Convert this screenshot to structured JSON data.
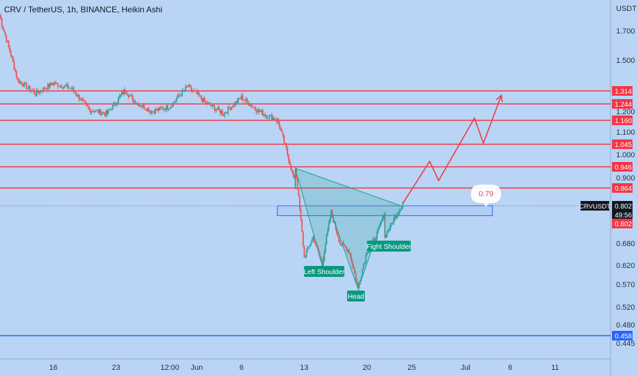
{
  "header": {
    "symbol_title": "CRV / TetherUS, 1h, BINANCE, Heikin Ashi"
  },
  "price_axis": {
    "unit": "USDT",
    "ticks": [
      "1.700",
      "1.500",
      "1.200",
      "1.100",
      "1.000",
      "0.900",
      "0.680",
      "0.620",
      "0.570",
      "0.520",
      "0.480",
      "0.445"
    ]
  },
  "time_axis": {
    "ticks": [
      "16",
      "23",
      "12:00",
      "Jun",
      "6",
      "13",
      "20",
      "25",
      "Jul",
      "6",
      "11"
    ]
  },
  "levels": [
    {
      "value": 1.314,
      "label": "1.314",
      "color": "#f23645"
    },
    {
      "value": 1.244,
      "label": "1.244",
      "color": "#f23645"
    },
    {
      "value": 1.16,
      "label": "1.160",
      "color": "#f23645"
    },
    {
      "value": 1.045,
      "label": "1.045",
      "color": "#f23645"
    },
    {
      "value": 0.946,
      "label": "0.946",
      "color": "#f23645"
    },
    {
      "value": 0.864,
      "label": "0.864",
      "color": "#f23645"
    },
    {
      "value": 0.458,
      "label": "0.458",
      "color": "#2962ff"
    }
  ],
  "current_price": {
    "symbol": "CRVUSDT",
    "price": "0.802",
    "countdown": "49:56",
    "alt_price": "0.802",
    "value": 0.802
  },
  "annotations": {
    "left_shoulder": "Left Shoulder",
    "head": "Head",
    "right_shoulder": "Fight Shoulder",
    "target_bubble": "0.79"
  },
  "colors": {
    "background": "#b9d4f4",
    "up_candle": "#26a69a",
    "down_candle": "#ef5350",
    "resistance": "#f23645",
    "support": "#2962ff",
    "label_bg": "#089981",
    "projection": "#f23645"
  },
  "chart_data": {
    "type": "candlestick",
    "title": "CRV / TetherUS, 1h, BINANCE, Heikin Ashi",
    "ylabel": "USDT",
    "ylim": [
      0.44,
      1.85
    ],
    "candle_style": "Heikin Ashi",
    "price_path": [
      {
        "x": "May 10",
        "price": 1.8
      },
      {
        "x": "May 12",
        "price": 1.38
      },
      {
        "x": "May 14",
        "price": 1.3
      },
      {
        "x": "May 16",
        "price": 1.36
      },
      {
        "x": "May 18",
        "price": 1.33
      },
      {
        "x": "May 20",
        "price": 1.21
      },
      {
        "x": "May 22",
        "price": 1.19
      },
      {
        "x": "May 24",
        "price": 1.32
      },
      {
        "x": "May 25",
        "price": 1.26
      },
      {
        "x": "May 27",
        "price": 1.2
      },
      {
        "x": "May 29",
        "price": 1.23
      },
      {
        "x": "May 31",
        "price": 1.34
      },
      {
        "x": "Jun 2",
        "price": 1.25
      },
      {
        "x": "Jun 4",
        "price": 1.19
      },
      {
        "x": "Jun 6",
        "price": 1.28
      },
      {
        "x": "Jun 8",
        "price": 1.2
      },
      {
        "x": "Jun 10",
        "price": 1.16
      },
      {
        "x": "Jun 11",
        "price": 1.02
      },
      {
        "x": "Jun 12",
        "price": 0.87
      },
      {
        "x": "Jun 12",
        "price": 0.94
      },
      {
        "x": "Jun 13",
        "price": 0.64
      },
      {
        "x": "Jun 14",
        "price": 0.7
      },
      {
        "x": "Jun 15",
        "price": 0.62
      },
      {
        "x": "Jun 16",
        "price": 0.78
      },
      {
        "x": "Jun 17",
        "price": 0.68
      },
      {
        "x": "Jun 18",
        "price": 0.66
      },
      {
        "x": "Jun 19",
        "price": 0.56
      },
      {
        "x": "Jun 20",
        "price": 0.66
      },
      {
        "x": "Jun 21",
        "price": 0.7
      },
      {
        "x": "Jun 22",
        "price": 0.78
      },
      {
        "x": "Jun 22",
        "price": 0.7
      },
      {
        "x": "Jun 23",
        "price": 0.76
      },
      {
        "x": "Jun 24",
        "price": 0.81
      }
    ],
    "pattern": {
      "name": "inverse head and shoulders",
      "points": [
        {
          "x": "Jun 12",
          "price": 0.94
        },
        {
          "x": "Jun 15",
          "price": 0.62
        },
        {
          "x": "Jun 16",
          "price": 0.78
        },
        {
          "x": "Jun 19",
          "price": 0.56
        },
        {
          "x": "Jun 22",
          "price": 0.78
        },
        {
          "x": "Jun 22",
          "price": 0.7
        },
        {
          "x": "Jun 24",
          "price": 0.8
        }
      ]
    },
    "zone": {
      "x_start": "Jun 10",
      "x_end": "Jul 4",
      "price_low": 0.77,
      "price_high": 0.802
    },
    "projection": [
      {
        "x": "Jun 24",
        "price": 0.81
      },
      {
        "x": "Jun 27",
        "price": 0.97
      },
      {
        "x": "Jun 28",
        "price": 0.89
      },
      {
        "x": "Jul 2",
        "price": 1.17
      },
      {
        "x": "Jul 3",
        "price": 1.05
      },
      {
        "x": "Jul 5",
        "price": 1.29
      }
    ]
  }
}
